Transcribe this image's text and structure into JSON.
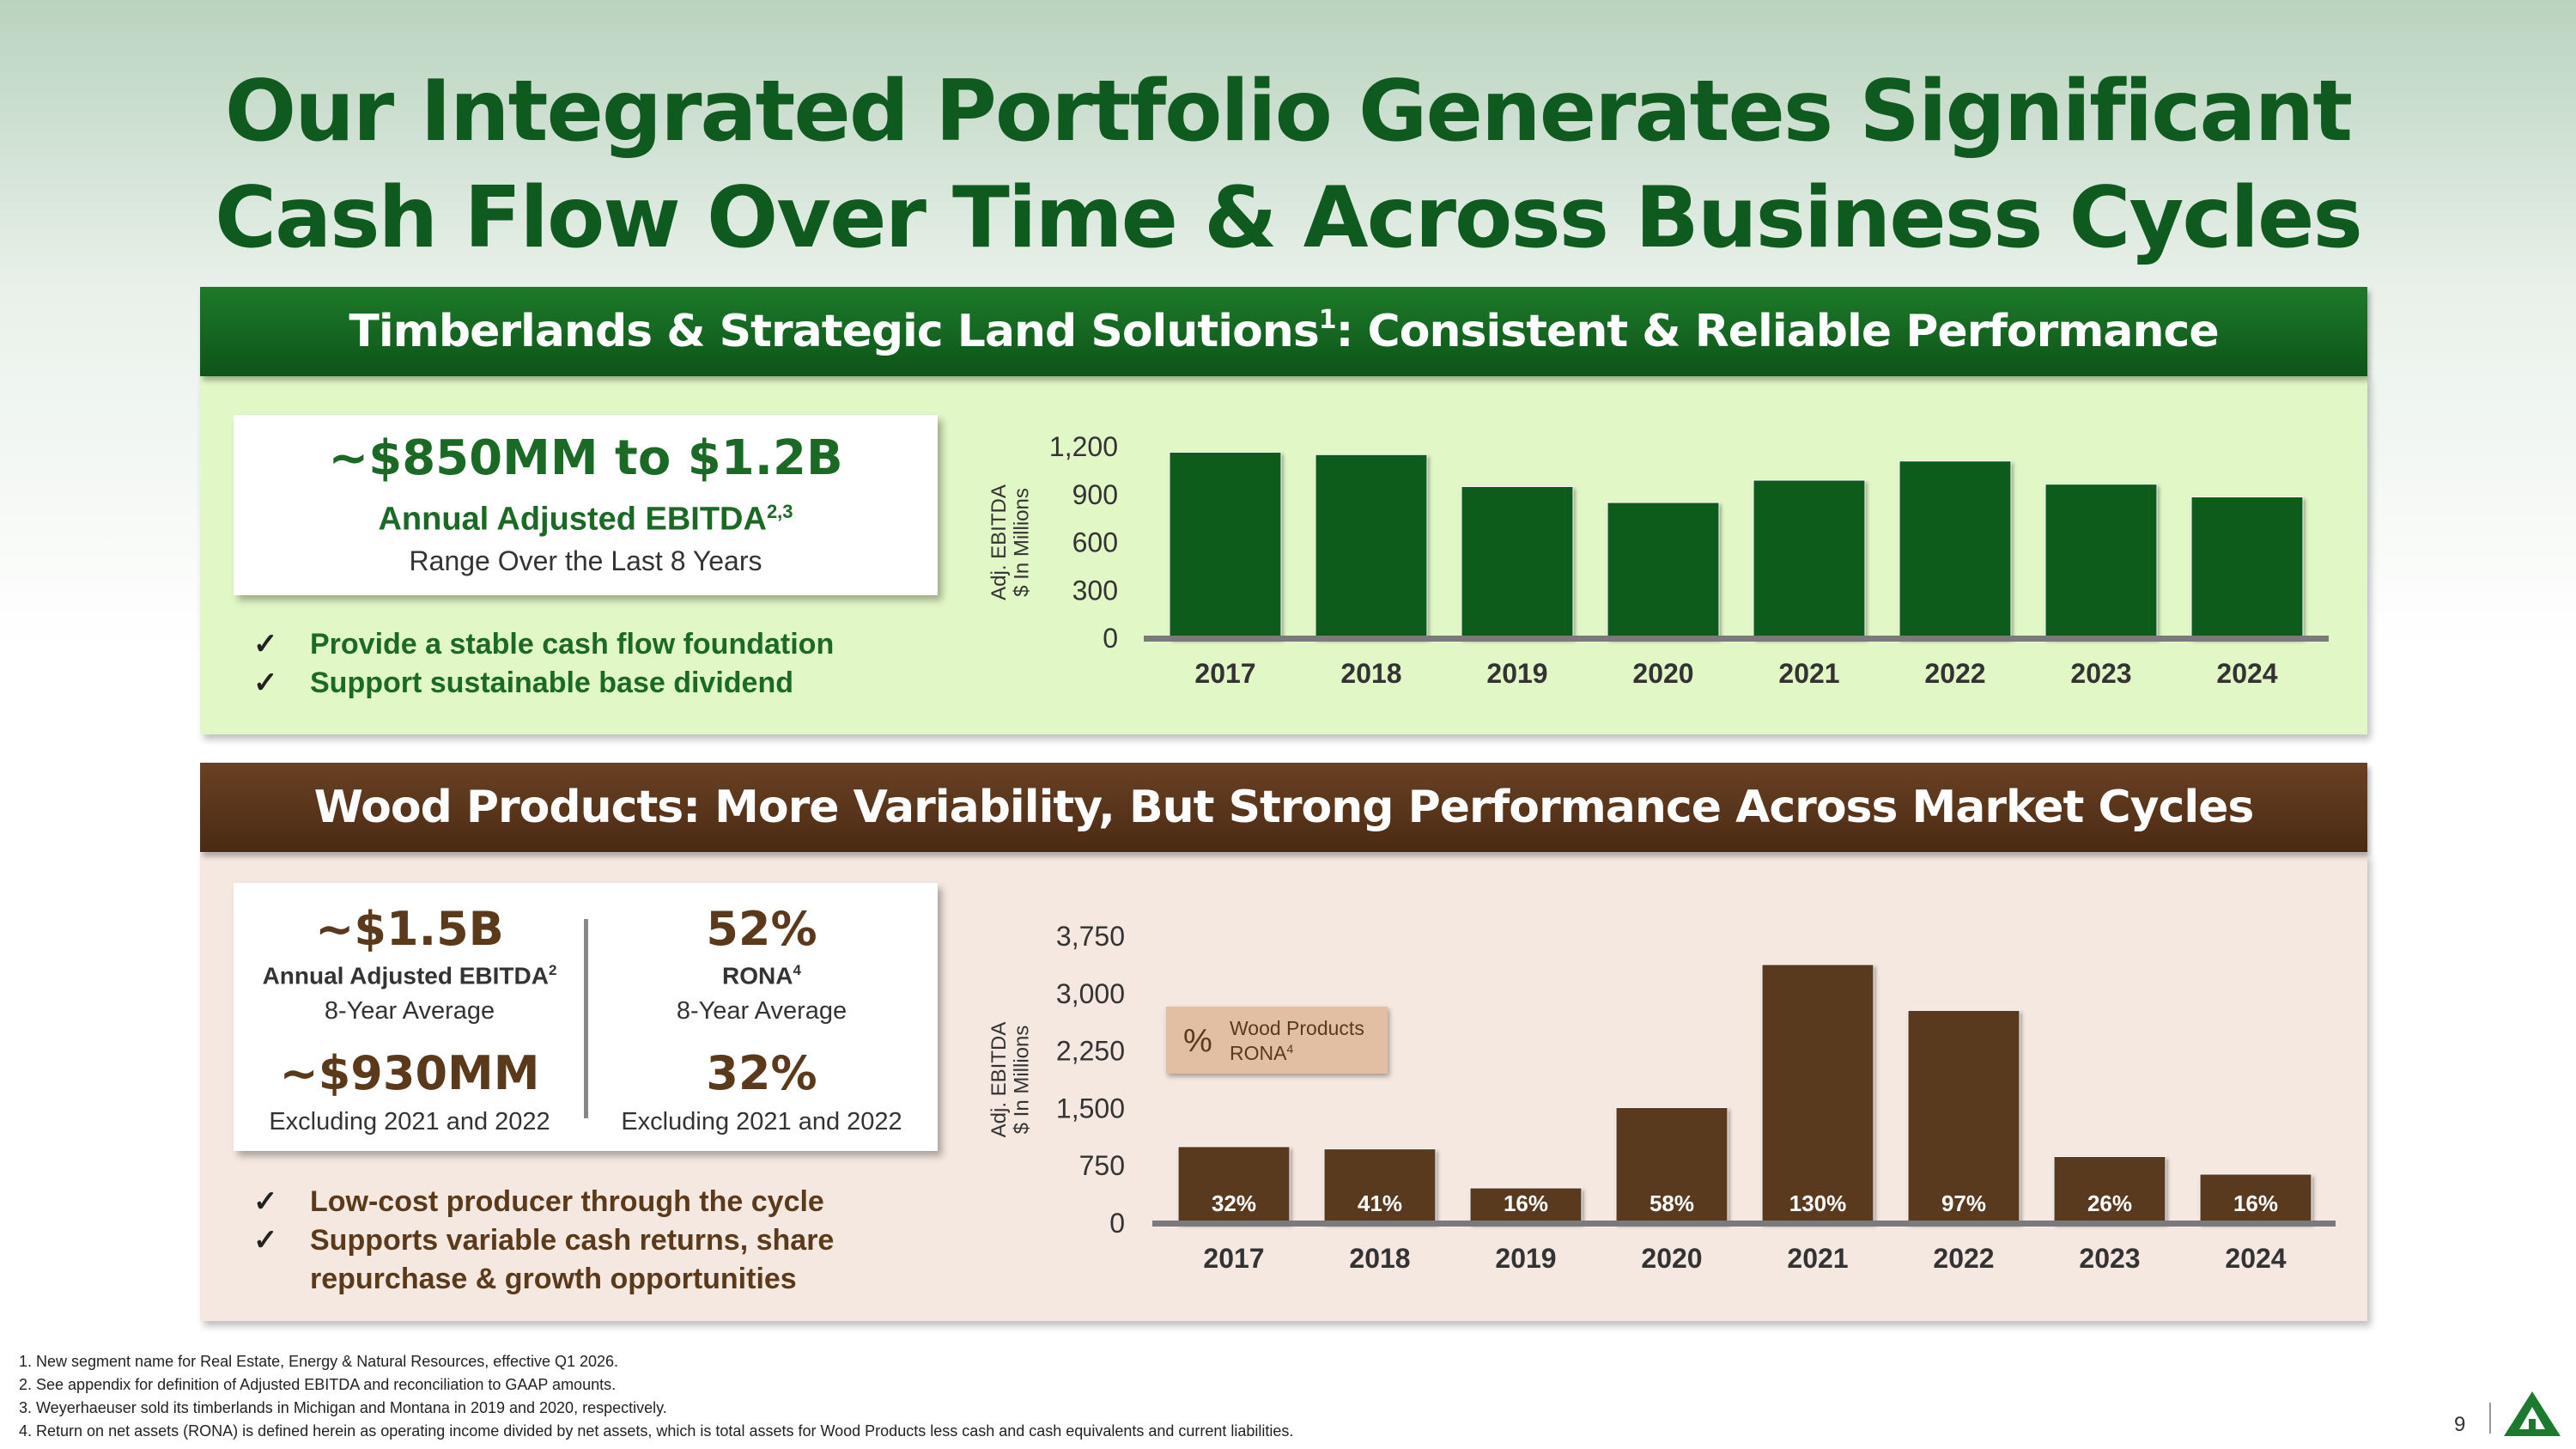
{
  "title_line1": "Our Integrated Portfolio Generates Significant",
  "title_line2": "Cash Flow Over Time & Across Business Cycles",
  "timberlands": {
    "header_pre": "Timberlands & Strategic Land Solutions",
    "header_sup": "1",
    "header_post": ": Consistent & Reliable Performance",
    "card_value": "~$850MM to $1.2B",
    "card_label": "Annual Adjusted EBITDA",
    "card_label_sup": "2,3",
    "card_note": "Range Over the Last 8 Years",
    "checks": [
      "Provide a stable cash flow foundation",
      "Support sustainable base dividend"
    ],
    "check_mark": "✓"
  },
  "wood": {
    "header": "Wood Products: More Variability, But Strong Performance Across Market Cycles",
    "ebitda_value": "~$1.5B",
    "ebitda_label": "Annual Adjusted EBITDA",
    "ebitda_sup": "2",
    "ebitda_note": "8-Year Average",
    "ebitda_excl_value": "~$930MM",
    "ebitda_excl_note": "Excluding 2021 and 2022",
    "rona_value": "52%",
    "rona_label": "RONA",
    "rona_sup": "4",
    "rona_note": "8-Year Average",
    "rona_excl_value": "32%",
    "rona_excl_note": "Excluding 2021 and 2022",
    "checks": [
      "Low-cost producer through the cycle",
      "Supports variable cash returns, share",
      "repurchase & growth opportunities"
    ],
    "check_mark": "✓"
  },
  "chart_data": [
    {
      "type": "bar",
      "categories": [
        "2017",
        "2018",
        "2019",
        "2020",
        "2021",
        "2022",
        "2023",
        "2024"
      ],
      "values": [
        1165,
        1150,
        950,
        850,
        990,
        1110,
        965,
        885
      ],
      "ylim": [
        0,
        1200
      ],
      "yticks": [
        "0",
        "300",
        "600",
        "900",
        "1,200"
      ],
      "ytick_values": [
        0,
        300,
        600,
        900,
        1200
      ],
      "ylabel": "Adj. EBITDA",
      "ylabel2": "$ In Millions",
      "color": "#0d5c1c"
    },
    {
      "type": "bar",
      "categories": [
        "2017",
        "2018",
        "2019",
        "2020",
        "2021",
        "2022",
        "2023",
        "2024"
      ],
      "values": [
        1000,
        970,
        460,
        1510,
        3380,
        2780,
        870,
        640
      ],
      "labels": [
        "32%",
        "41%",
        "16%",
        "58%",
        "130%",
        "97%",
        "26%",
        "16%"
      ],
      "ylim": [
        0,
        3750
      ],
      "yticks": [
        "0",
        "750",
        "1,500",
        "2,250",
        "3,000",
        "3,750"
      ],
      "ytick_values": [
        0,
        750,
        1500,
        2250,
        3000,
        3750
      ],
      "ylabel": "Adj. EBITDA",
      "ylabel2": "$ In Millions",
      "legend_symbol": "%",
      "legend_text1": "Wood Products",
      "legend_text2": "RONA",
      "legend_sup": "4",
      "color": "#5a3a1e"
    }
  ],
  "footnotes": [
    "1. New segment name for Real Estate, Energy & Natural Resources, effective Q1 2026.",
    "2. See appendix for definition of Adjusted EBITDA and reconciliation to GAAP amounts.",
    "3. Weyerhaeuser sold its timberlands in Michigan and Montana in 2019 and 2020, respectively.",
    "4. Return on net assets (RONA) is defined herein as operating income divided by net assets, which is total assets for Wood Products less cash and cash equivalents and current liabilities."
  ],
  "page_number": "9",
  "colors": {
    "green": "#0d5c1c",
    "brown": "#5a3a1e",
    "panel_green": "#e1f7c6",
    "panel_brown": "#f5e8e0"
  }
}
